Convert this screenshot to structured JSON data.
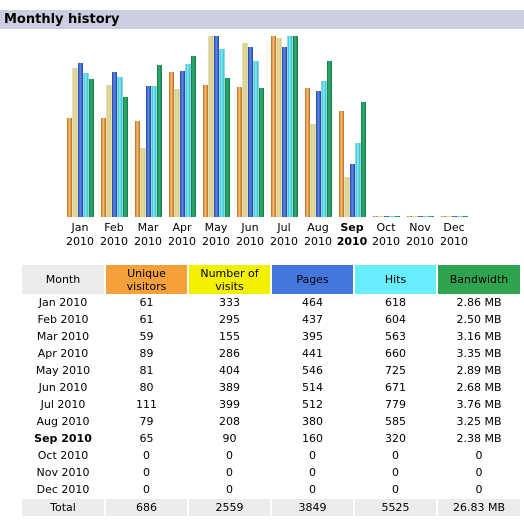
{
  "section_title": "Monthly history",
  "colors": {
    "unique_visitors": "#f4a13b",
    "visits": "#f4f100",
    "pages": "#4477dd",
    "hits": "#66eeff",
    "bandwidth": "#2ea44f"
  },
  "chart_data": {
    "type": "bar",
    "categories": [
      "Jan",
      "Feb",
      "Mar",
      "Apr",
      "May",
      "Jun",
      "Jul",
      "Aug",
      "Sep",
      "Oct",
      "Nov",
      "Dec"
    ],
    "year": "2010",
    "current_index": 8,
    "series": [
      {
        "key": "unique_visitors",
        "values": [
          61,
          61,
          59,
          89,
          81,
          80,
          111,
          79,
          65,
          0,
          0,
          0
        ]
      },
      {
        "key": "visits",
        "values": [
          333,
          295,
          155,
          286,
          404,
          389,
          399,
          208,
          90,
          0,
          0,
          0
        ]
      },
      {
        "key": "pages",
        "values": [
          464,
          437,
          395,
          441,
          546,
          514,
          512,
          380,
          160,
          0,
          0,
          0
        ]
      },
      {
        "key": "hits",
        "values": [
          618,
          604,
          563,
          660,
          725,
          671,
          779,
          585,
          320,
          0,
          0,
          0
        ]
      },
      {
        "key": "bandwidth",
        "values": [
          2.86,
          2.5,
          3.16,
          3.35,
          2.89,
          2.68,
          3.76,
          3.25,
          2.38,
          0,
          0,
          0
        ]
      }
    ],
    "grid": false,
    "legend": "none"
  },
  "table": {
    "headers": {
      "month": "Month",
      "unique_visitors": "Unique visitors",
      "visits": "Number of visits",
      "pages": "Pages",
      "hits": "Hits",
      "bandwidth": "Bandwidth"
    },
    "rows": [
      {
        "month": "Jan 2010",
        "uv": "61",
        "visits": "333",
        "pages": "464",
        "hits": "618",
        "bw": "2.86 MB"
      },
      {
        "month": "Feb 2010",
        "uv": "61",
        "visits": "295",
        "pages": "437",
        "hits": "604",
        "bw": "2.50 MB"
      },
      {
        "month": "Mar 2010",
        "uv": "59",
        "visits": "155",
        "pages": "395",
        "hits": "563",
        "bw": "3.16 MB"
      },
      {
        "month": "Apr 2010",
        "uv": "89",
        "visits": "286",
        "pages": "441",
        "hits": "660",
        "bw": "3.35 MB"
      },
      {
        "month": "May 2010",
        "uv": "81",
        "visits": "404",
        "pages": "546",
        "hits": "725",
        "bw": "2.89 MB"
      },
      {
        "month": "Jun 2010",
        "uv": "80",
        "visits": "389",
        "pages": "514",
        "hits": "671",
        "bw": "2.68 MB"
      },
      {
        "month": "Jul 2010",
        "uv": "111",
        "visits": "399",
        "pages": "512",
        "hits": "779",
        "bw": "3.76 MB"
      },
      {
        "month": "Aug 2010",
        "uv": "79",
        "visits": "208",
        "pages": "380",
        "hits": "585",
        "bw": "3.25 MB"
      },
      {
        "month": "Sep 2010",
        "uv": "65",
        "visits": "90",
        "pages": "160",
        "hits": "320",
        "bw": "2.38 MB"
      },
      {
        "month": "Oct 2010",
        "uv": "0",
        "visits": "0",
        "pages": "0",
        "hits": "0",
        "bw": "0"
      },
      {
        "month": "Nov 2010",
        "uv": "0",
        "visits": "0",
        "pages": "0",
        "hits": "0",
        "bw": "0"
      },
      {
        "month": "Dec 2010",
        "uv": "0",
        "visits": "0",
        "pages": "0",
        "hits": "0",
        "bw": "0"
      }
    ],
    "total": {
      "label": "Total",
      "uv": "686",
      "visits": "2559",
      "pages": "3849",
      "hits": "5525",
      "bw": "26.83 MB"
    }
  }
}
